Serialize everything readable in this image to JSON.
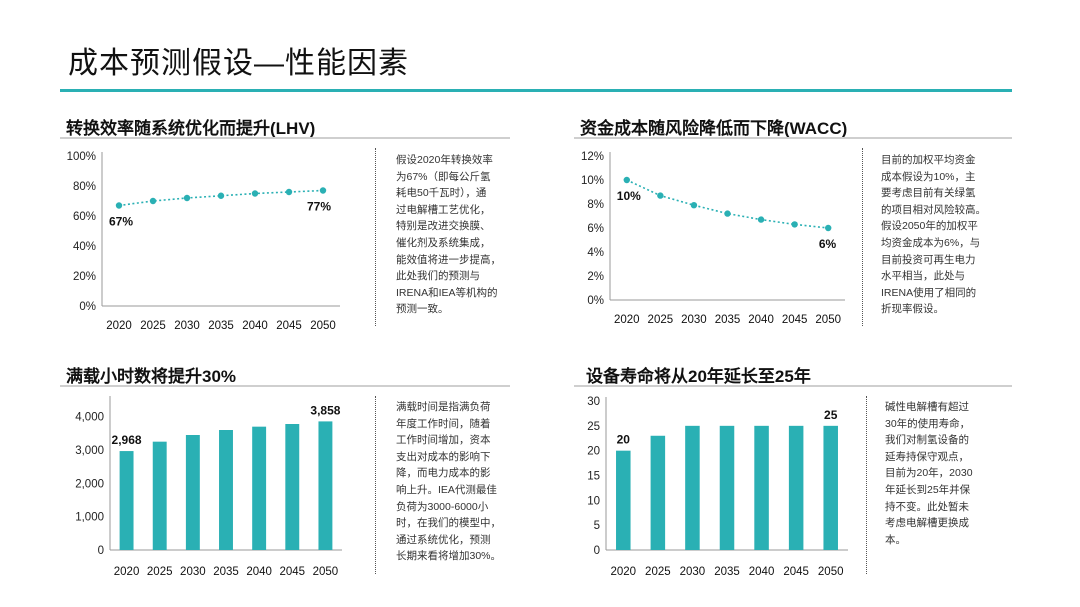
{
  "page": {
    "title": "成本预测假设—性能因素"
  },
  "panels": [
    {
      "title": "转换效率随系统优化而提升(LHV)",
      "note": "假设2020年转换效率\n为67%（即每公斤氢\n耗电50千瓦时），通\n过电解槽工艺优化，\n特别是改进交换膜、\n催化剂及系统集成，\n能效值将进一步提高，\n此处我们的预测与\nIRENA和IEA等机构的\n预测一致。"
    },
    {
      "title": "资金成本随风险降低而下降(WACC)",
      "note": "目前的加权平均资金\n成本假设为10%，主\n要考虑目前有关绿氢\n的项目相对风险较高。\n假设2050年的加权平\n均资金成本为6%，与\n目前投资可再生电力\n水平相当，此处与\nIRENA使用了相同的\n折现率假设。"
    },
    {
      "title": "满载小时数将提升30%",
      "note": "满载时间是指满负荷\n年度工作时间，随着\n工作时间增加，资本\n支出对成本的影响下\n降，而电力成本的影\n响上升。IEA代测最佳\n负荷为3000-6000小\n时，在我们的模型中，\n通过系统优化，预测\n长期来看将增加30%。"
    },
    {
      "title": "设备寿命将从20年延长至25年",
      "note": "碱性电解槽有超过\n30年的使用寿命，\n我们对制氢设备的\n延寿持保守观点，\n目前为20年，2030\n年延长到25年并保\n持不变。此处暂未\n考虑电解槽更换成\n本。"
    }
  ],
  "chart_data": [
    {
      "type": "line",
      "title": "转换效率随系统优化而提升(LHV)",
      "categories": [
        "2020",
        "2025",
        "2030",
        "2035",
        "2040",
        "2045",
        "2050"
      ],
      "values": [
        67,
        70,
        72,
        73.5,
        75,
        76,
        77
      ],
      "ylim": [
        0,
        100
      ],
      "yticks": [
        "0%",
        "20%",
        "40%",
        "60%",
        "80%",
        "100%"
      ],
      "annotations": [
        {
          "index": 0,
          "text": "67%"
        },
        {
          "index": 6,
          "text": "77%"
        }
      ],
      "color": "#2ab0b4"
    },
    {
      "type": "line",
      "title": "资金成本随风险降低而下降(WACC)",
      "categories": [
        "2020",
        "2025",
        "2030",
        "2035",
        "2040",
        "2045",
        "2050"
      ],
      "values": [
        10,
        8.7,
        7.9,
        7.2,
        6.7,
        6.3,
        6
      ],
      "ylim": [
        0,
        12
      ],
      "yticks": [
        "0%",
        "2%",
        "4%",
        "6%",
        "8%",
        "10%",
        "12%"
      ],
      "annotations": [
        {
          "index": 0,
          "text": "10%"
        },
        {
          "index": 6,
          "text": "6%"
        }
      ],
      "color": "#2ab0b4"
    },
    {
      "type": "bar",
      "title": "满载小时数将提升30%",
      "categories": [
        "2020",
        "2025",
        "2030",
        "2035",
        "2040",
        "2045",
        "2050"
      ],
      "values": [
        2968,
        3250,
        3450,
        3600,
        3700,
        3780,
        3858
      ],
      "ylim": [
        0,
        4500
      ],
      "yticks": [
        "0",
        "1,000",
        "2,000",
        "3,000",
        "4,000"
      ],
      "annotations": [
        {
          "index": 0,
          "text": "2,968"
        },
        {
          "index": 6,
          "text": "3,858"
        }
      ],
      "color": "#2ab0b4"
    },
    {
      "type": "bar",
      "title": "设备寿命将从20年延长至25年",
      "categories": [
        "2020",
        "2025",
        "2030",
        "2035",
        "2040",
        "2045",
        "2050"
      ],
      "values": [
        20,
        23,
        25,
        25,
        25,
        25,
        25
      ],
      "ylim": [
        0,
        30
      ],
      "yticks": [
        "0",
        "5",
        "10",
        "15",
        "20",
        "25",
        "30"
      ],
      "annotations": [
        {
          "index": 0,
          "text": "20"
        },
        {
          "index": 6,
          "text": "25"
        }
      ],
      "color": "#2ab0b4"
    }
  ]
}
